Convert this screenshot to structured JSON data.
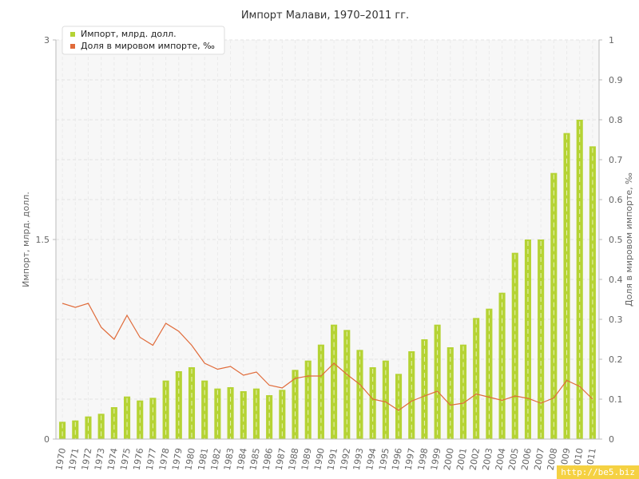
{
  "chart_data": {
    "type": "bar+line",
    "title": "Импорт Малави, 1970–2011 гг.",
    "categories": [
      "1970",
      "1971",
      "1972",
      "1973",
      "1974",
      "1975",
      "1976",
      "1977",
      "1978",
      "1979",
      "1980",
      "1981",
      "1982",
      "1983",
      "1984",
      "1985",
      "1986",
      "1987",
      "1988",
      "1989",
      "1990",
      "1991",
      "1992",
      "1993",
      "1994",
      "1995",
      "1996",
      "1997",
      "1998",
      "1999",
      "2000",
      "2001",
      "2002",
      "2003",
      "2004",
      "2005",
      "2006",
      "2007",
      "2008",
      "2009",
      "2010",
      "2011"
    ],
    "series": [
      {
        "name": "Импорт, млрд. долл.",
        "type": "bar",
        "axis": "left",
        "color": "#b5d334",
        "values": [
          0.13,
          0.14,
          0.17,
          0.19,
          0.24,
          0.32,
          0.29,
          0.31,
          0.44,
          0.51,
          0.54,
          0.44,
          0.38,
          0.39,
          0.36,
          0.38,
          0.33,
          0.37,
          0.52,
          0.59,
          0.71,
          0.86,
          0.82,
          0.67,
          0.54,
          0.59,
          0.49,
          0.66,
          0.75,
          0.86,
          0.69,
          0.71,
          0.91,
          0.98,
          1.1,
          1.4,
          1.5,
          1.5,
          2.0,
          2.3,
          2.4,
          2.2
        ]
      },
      {
        "name": "Доля в мировом импорте, ‰",
        "type": "line",
        "axis": "right",
        "color": "#e06b3a",
        "values": [
          0.34,
          0.33,
          0.34,
          0.28,
          0.25,
          0.31,
          0.255,
          0.235,
          0.29,
          0.27,
          0.235,
          0.19,
          0.175,
          0.182,
          0.16,
          0.168,
          0.135,
          0.128,
          0.152,
          0.158,
          0.158,
          0.19,
          0.162,
          0.137,
          0.1,
          0.093,
          0.072,
          0.095,
          0.108,
          0.12,
          0.085,
          0.09,
          0.113,
          0.105,
          0.097,
          0.108,
          0.102,
          0.09,
          0.103,
          0.147,
          0.132,
          0.1
        ]
      }
    ],
    "ylabel_left": "Импорт, млрд. долл.",
    "ylabel_right": "Доля в мировом импорте, ‰",
    "ylim_left": [
      0,
      3
    ],
    "ylim_right": [
      0,
      1
    ],
    "yticks_left": [
      "0",
      "1.5",
      "3"
    ],
    "yticks_right": [
      "0",
      "0.1",
      "0.2",
      "0.3",
      "0.4",
      "0.5",
      "0.6",
      "0.7",
      "0.8",
      "0.9",
      "1"
    ],
    "grid": true,
    "legend": "top-left"
  },
  "watermark": "http://be5.biz"
}
